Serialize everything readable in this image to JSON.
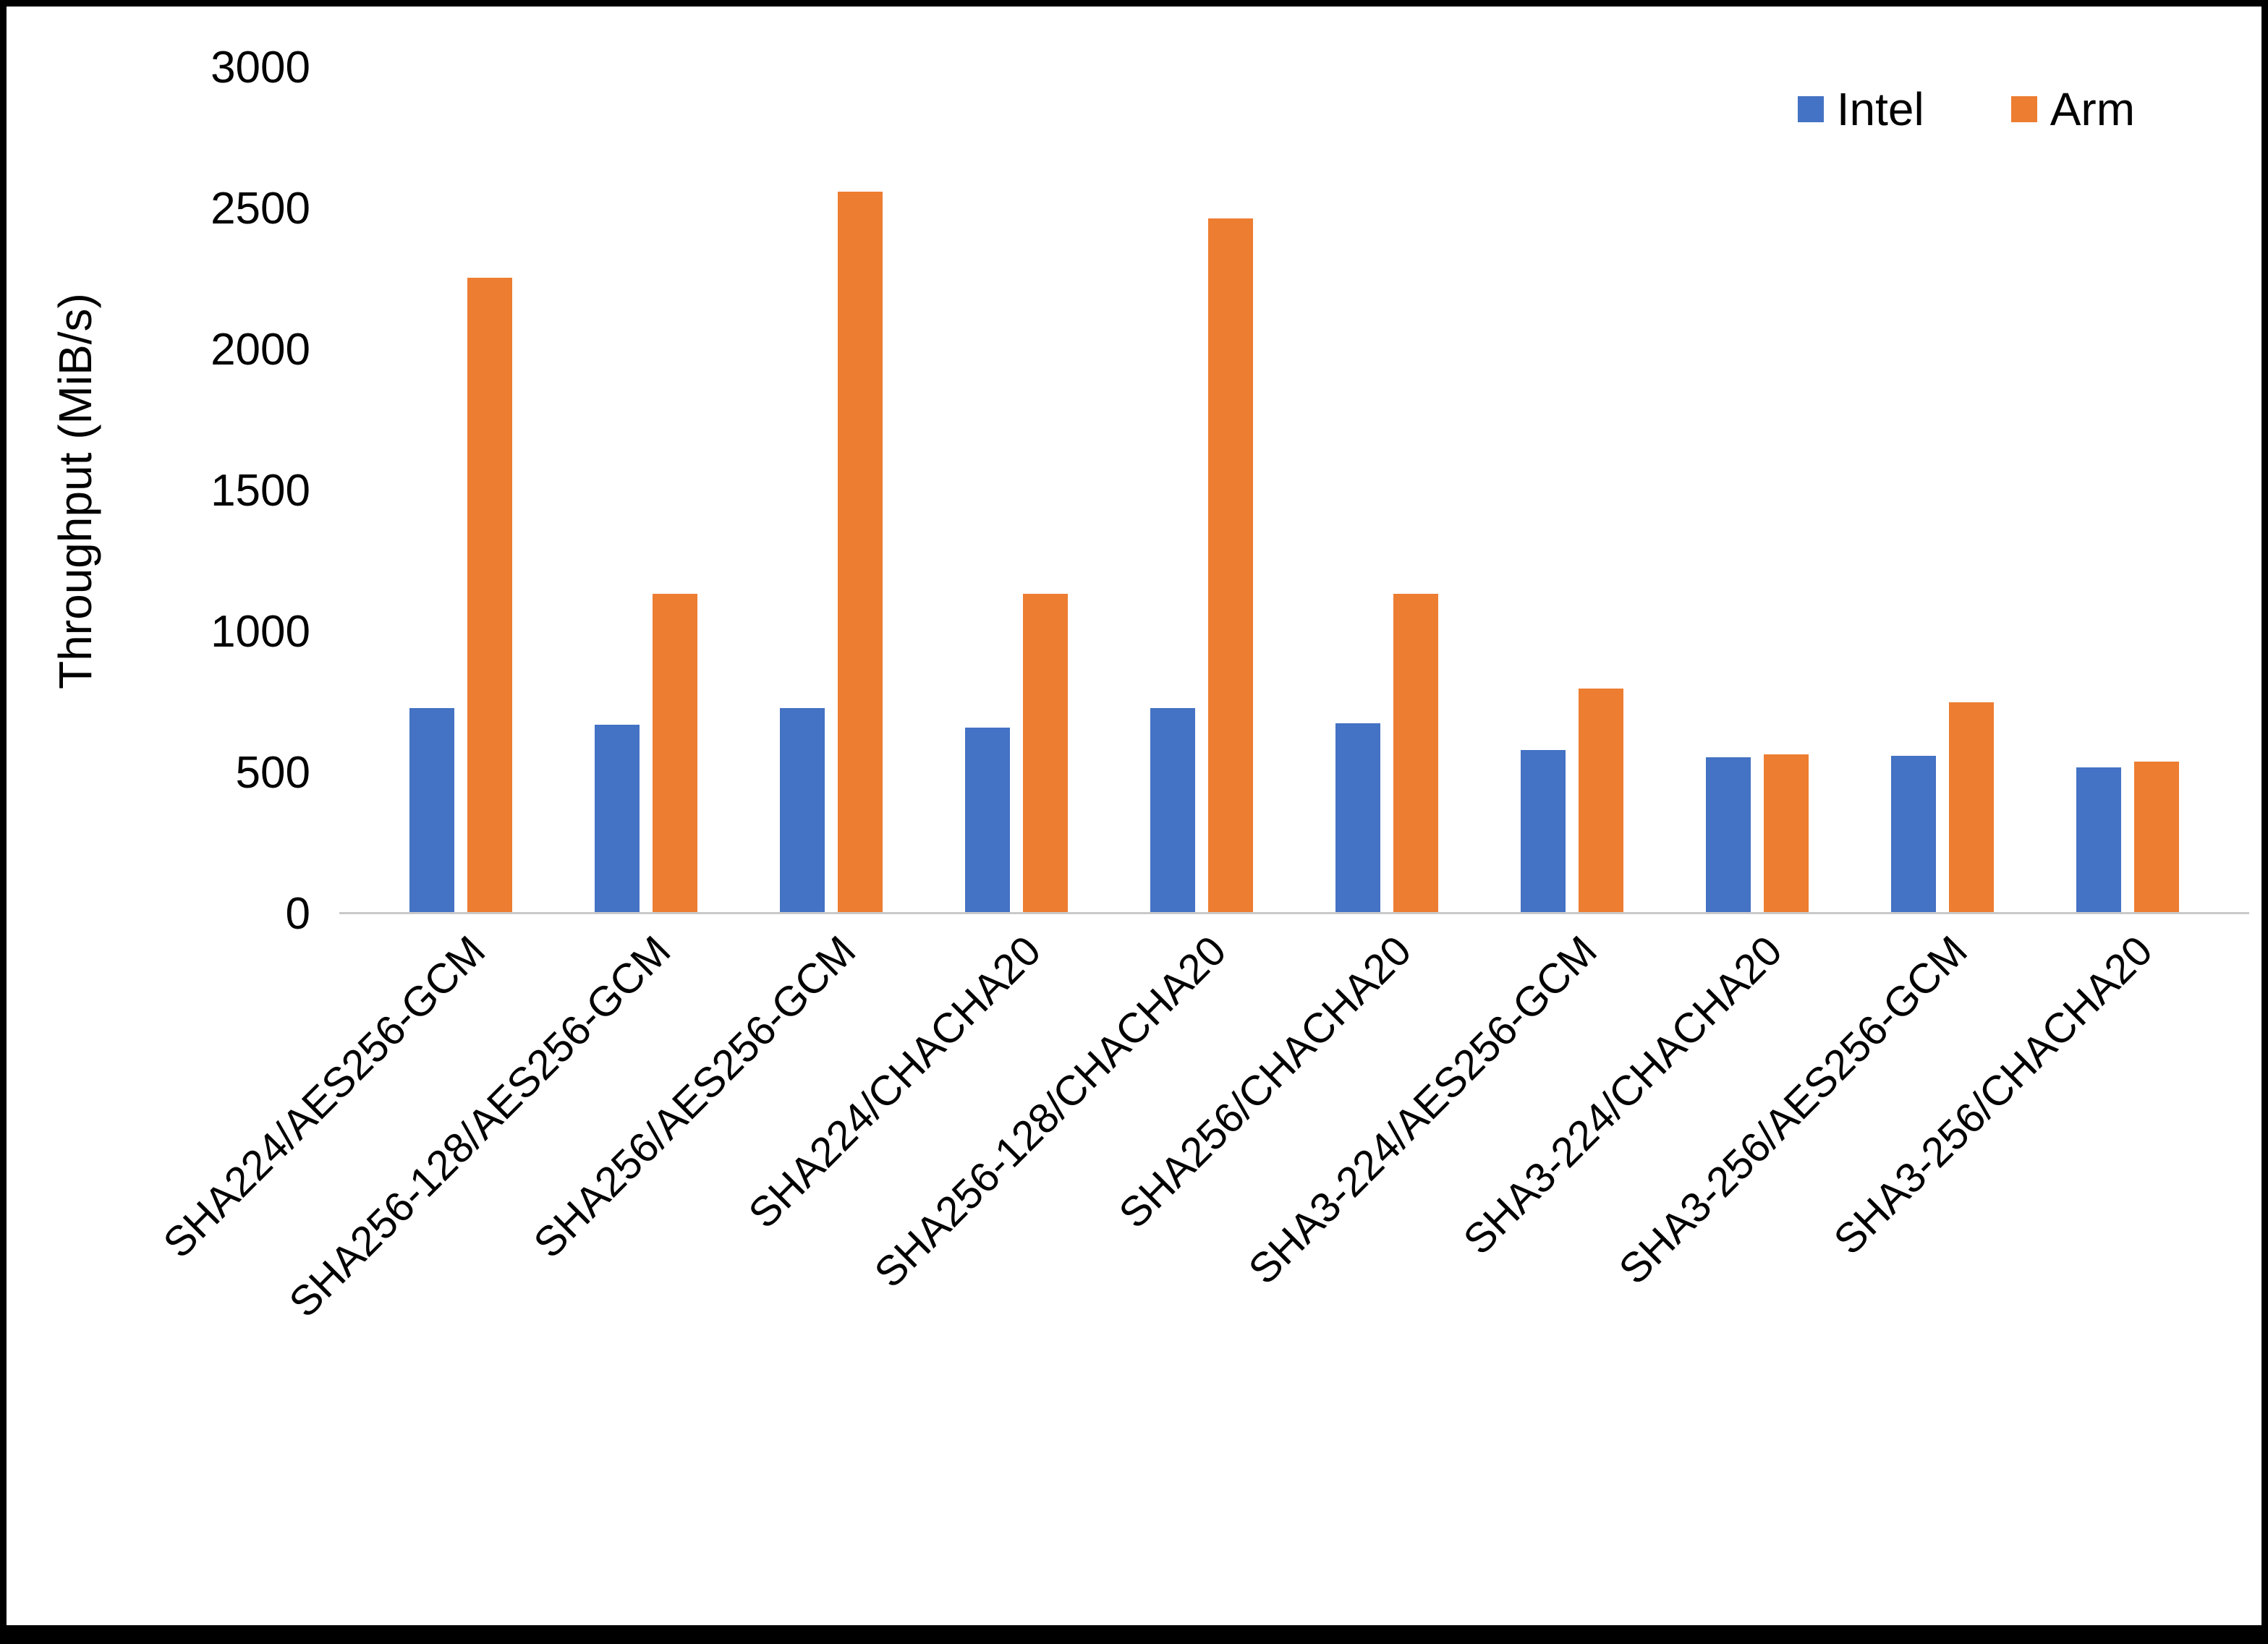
{
  "chart_data": {
    "type": "bar",
    "ylabel": "Throughput (MiB/s)",
    "ylim": [
      0,
      3000
    ],
    "yticks": [
      0,
      500,
      1000,
      1500,
      2000,
      2500,
      3000
    ],
    "grid": false,
    "legend_position": "top-right",
    "categories": [
      "SHA224/AES256-GCM",
      "SHA256-128/AES256-GCM",
      "SHA256/AES256-GCM",
      "SHA224/CHACHA20",
      "SHA256-128/CHACHA20",
      "SHA256/CHACHA20",
      "SHA3-224/AES256-GCM",
      "SHA3-224/CHACHA20",
      "SHA3-256/AES256-GCM",
      "SHA3-256/CHACHA20"
    ],
    "series": [
      {
        "name": "Intel",
        "color": "#4472C4",
        "values": [
          725,
          665,
          725,
          655,
          725,
          670,
          575,
          550,
          555,
          515
        ]
      },
      {
        "name": "Arm",
        "color": "#ED7D31",
        "values": [
          2255,
          1130,
          2560,
          1130,
          2465,
          1130,
          795,
          560,
          745,
          535
        ]
      }
    ]
  }
}
